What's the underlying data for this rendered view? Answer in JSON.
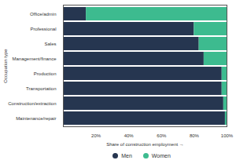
{
  "chart_data": {
    "type": "bar",
    "orientation": "horizontal",
    "stacked": true,
    "categories": [
      "Office/admin",
      "Professional",
      "Sales",
      "Management/finance",
      "Production",
      "Transportation",
      "Construction/extraction",
      "Maintenance/repair"
    ],
    "series": [
      {
        "name": "Men",
        "color": "#263650",
        "values": [
          14,
          80,
          83,
          86,
          97,
          97,
          98,
          99
        ]
      },
      {
        "name": "Women",
        "color": "#3dbb8f",
        "values": [
          86,
          20,
          17,
          14,
          3,
          3,
          2,
          1
        ]
      }
    ],
    "x_label": "Share of construction employment",
    "y_label": "Occupation type",
    "xlim": [
      0,
      100
    ],
    "xticks": [
      {
        "value": 20,
        "label": "20%"
      },
      {
        "value": 40,
        "label": "40%"
      },
      {
        "value": 60,
        "label": "60%"
      },
      {
        "value": 80,
        "label": "80%"
      },
      {
        "value": 100,
        "label": "100%"
      }
    ],
    "grid": false,
    "legend": "bottom"
  }
}
